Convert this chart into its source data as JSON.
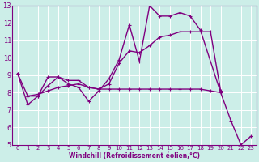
{
  "xlabel": "Windchill (Refroidissement éolien,°C)",
  "bg_color": "#cceee8",
  "line_color": "#800080",
  "grid_color": "#ffffff",
  "xlim": [
    -0.5,
    23.5
  ],
  "ylim": [
    5,
    13
  ],
  "xticks": [
    0,
    1,
    2,
    3,
    4,
    5,
    6,
    7,
    8,
    9,
    10,
    11,
    12,
    13,
    14,
    15,
    16,
    17,
    18,
    19,
    20,
    21,
    22,
    23
  ],
  "yticks": [
    5,
    6,
    7,
    8,
    9,
    10,
    11,
    12,
    13
  ],
  "series1_x": [
    0,
    1,
    2,
    3,
    4,
    5,
    6,
    7,
    8,
    9,
    10,
    11,
    12,
    13,
    14,
    15,
    16,
    17,
    18,
    20,
    21,
    22,
    23
  ],
  "series1_y": [
    9.1,
    7.3,
    7.8,
    8.9,
    8.9,
    8.5,
    8.3,
    7.5,
    8.1,
    8.8,
    9.9,
    11.9,
    9.8,
    13.0,
    12.4,
    12.4,
    12.6,
    12.4,
    11.6,
    8.0,
    6.4,
    5.0,
    5.5
  ],
  "series2_x": [
    0,
    1,
    2,
    3,
    4,
    5,
    6,
    7,
    8,
    9,
    10,
    11,
    12,
    13,
    14,
    15,
    16,
    17,
    18,
    19,
    20
  ],
  "series2_y": [
    9.1,
    7.8,
    7.8,
    8.4,
    8.9,
    8.7,
    8.7,
    8.3,
    8.2,
    8.5,
    9.7,
    10.4,
    10.3,
    10.7,
    11.2,
    11.3,
    11.5,
    11.5,
    11.5,
    11.5,
    8.1
  ],
  "series3_x": [
    1,
    2,
    3,
    4,
    5,
    6,
    7,
    8,
    9,
    10,
    11,
    12,
    13,
    14,
    15,
    16,
    17,
    18,
    19,
    20
  ],
  "series3_y": [
    7.8,
    7.9,
    8.1,
    8.3,
    8.4,
    8.5,
    8.3,
    8.2,
    8.2,
    8.2,
    8.2,
    8.2,
    8.2,
    8.2,
    8.2,
    8.2,
    8.2,
    8.2,
    8.1,
    8.0
  ],
  "linewidth": 1.0,
  "marker_size": 3.5
}
